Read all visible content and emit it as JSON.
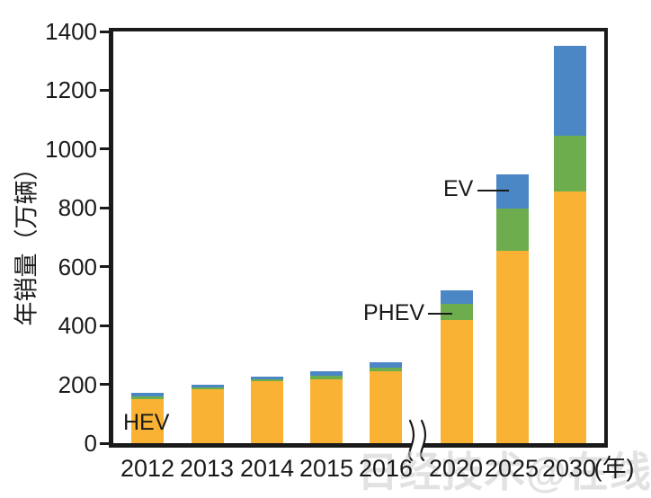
{
  "chart_data": {
    "type": "bar",
    "stacked": true,
    "title": "",
    "ylabel": "年销量（万辆）",
    "xlabel_suffix": "(年)",
    "ylim": [
      0,
      1400
    ],
    "yticks": [
      0,
      200,
      400,
      600,
      800,
      1000,
      1200,
      1400
    ],
    "categories": [
      "2012",
      "2013",
      "2014",
      "2015",
      "2016",
      "2020",
      "2025",
      "2030"
    ],
    "series": [
      {
        "name": "HEV",
        "color": "#F9B233",
        "values": [
          150,
          182,
          212,
          218,
          245,
          420,
          655,
          855
        ]
      },
      {
        "name": "PHEV",
        "color": "#6EAD4E",
        "values": [
          8,
          6,
          6,
          12,
          12,
          55,
          145,
          190
        ]
      },
      {
        "name": "EV",
        "color": "#4C87C5",
        "values": [
          12,
          8,
          8,
          15,
          18,
          45,
          115,
          305
        ]
      }
    ],
    "totals": [
      170,
      196,
      226,
      245,
      275,
      520,
      915,
      1350
    ],
    "axis_break_between": [
      "2016",
      "2020"
    ],
    "legend_position": "none",
    "grid": false,
    "annotations": [
      {
        "text": "HEV",
        "x": 137,
        "y": 457,
        "line": null
      },
      {
        "text": "PHEV",
        "x": 404,
        "y": 335,
        "line": {
          "x": 476,
          "y": 348,
          "w": 27
        }
      },
      {
        "text": "EV",
        "x": 493,
        "y": 197,
        "line": {
          "x": 531,
          "y": 211,
          "w": 35
        }
      }
    ]
  },
  "watermark": {
    "text": "日经技术@在线!",
    "color": "#cccccc"
  },
  "colors": {
    "axis": "#1a1a1a",
    "background": "#ffffff"
  }
}
